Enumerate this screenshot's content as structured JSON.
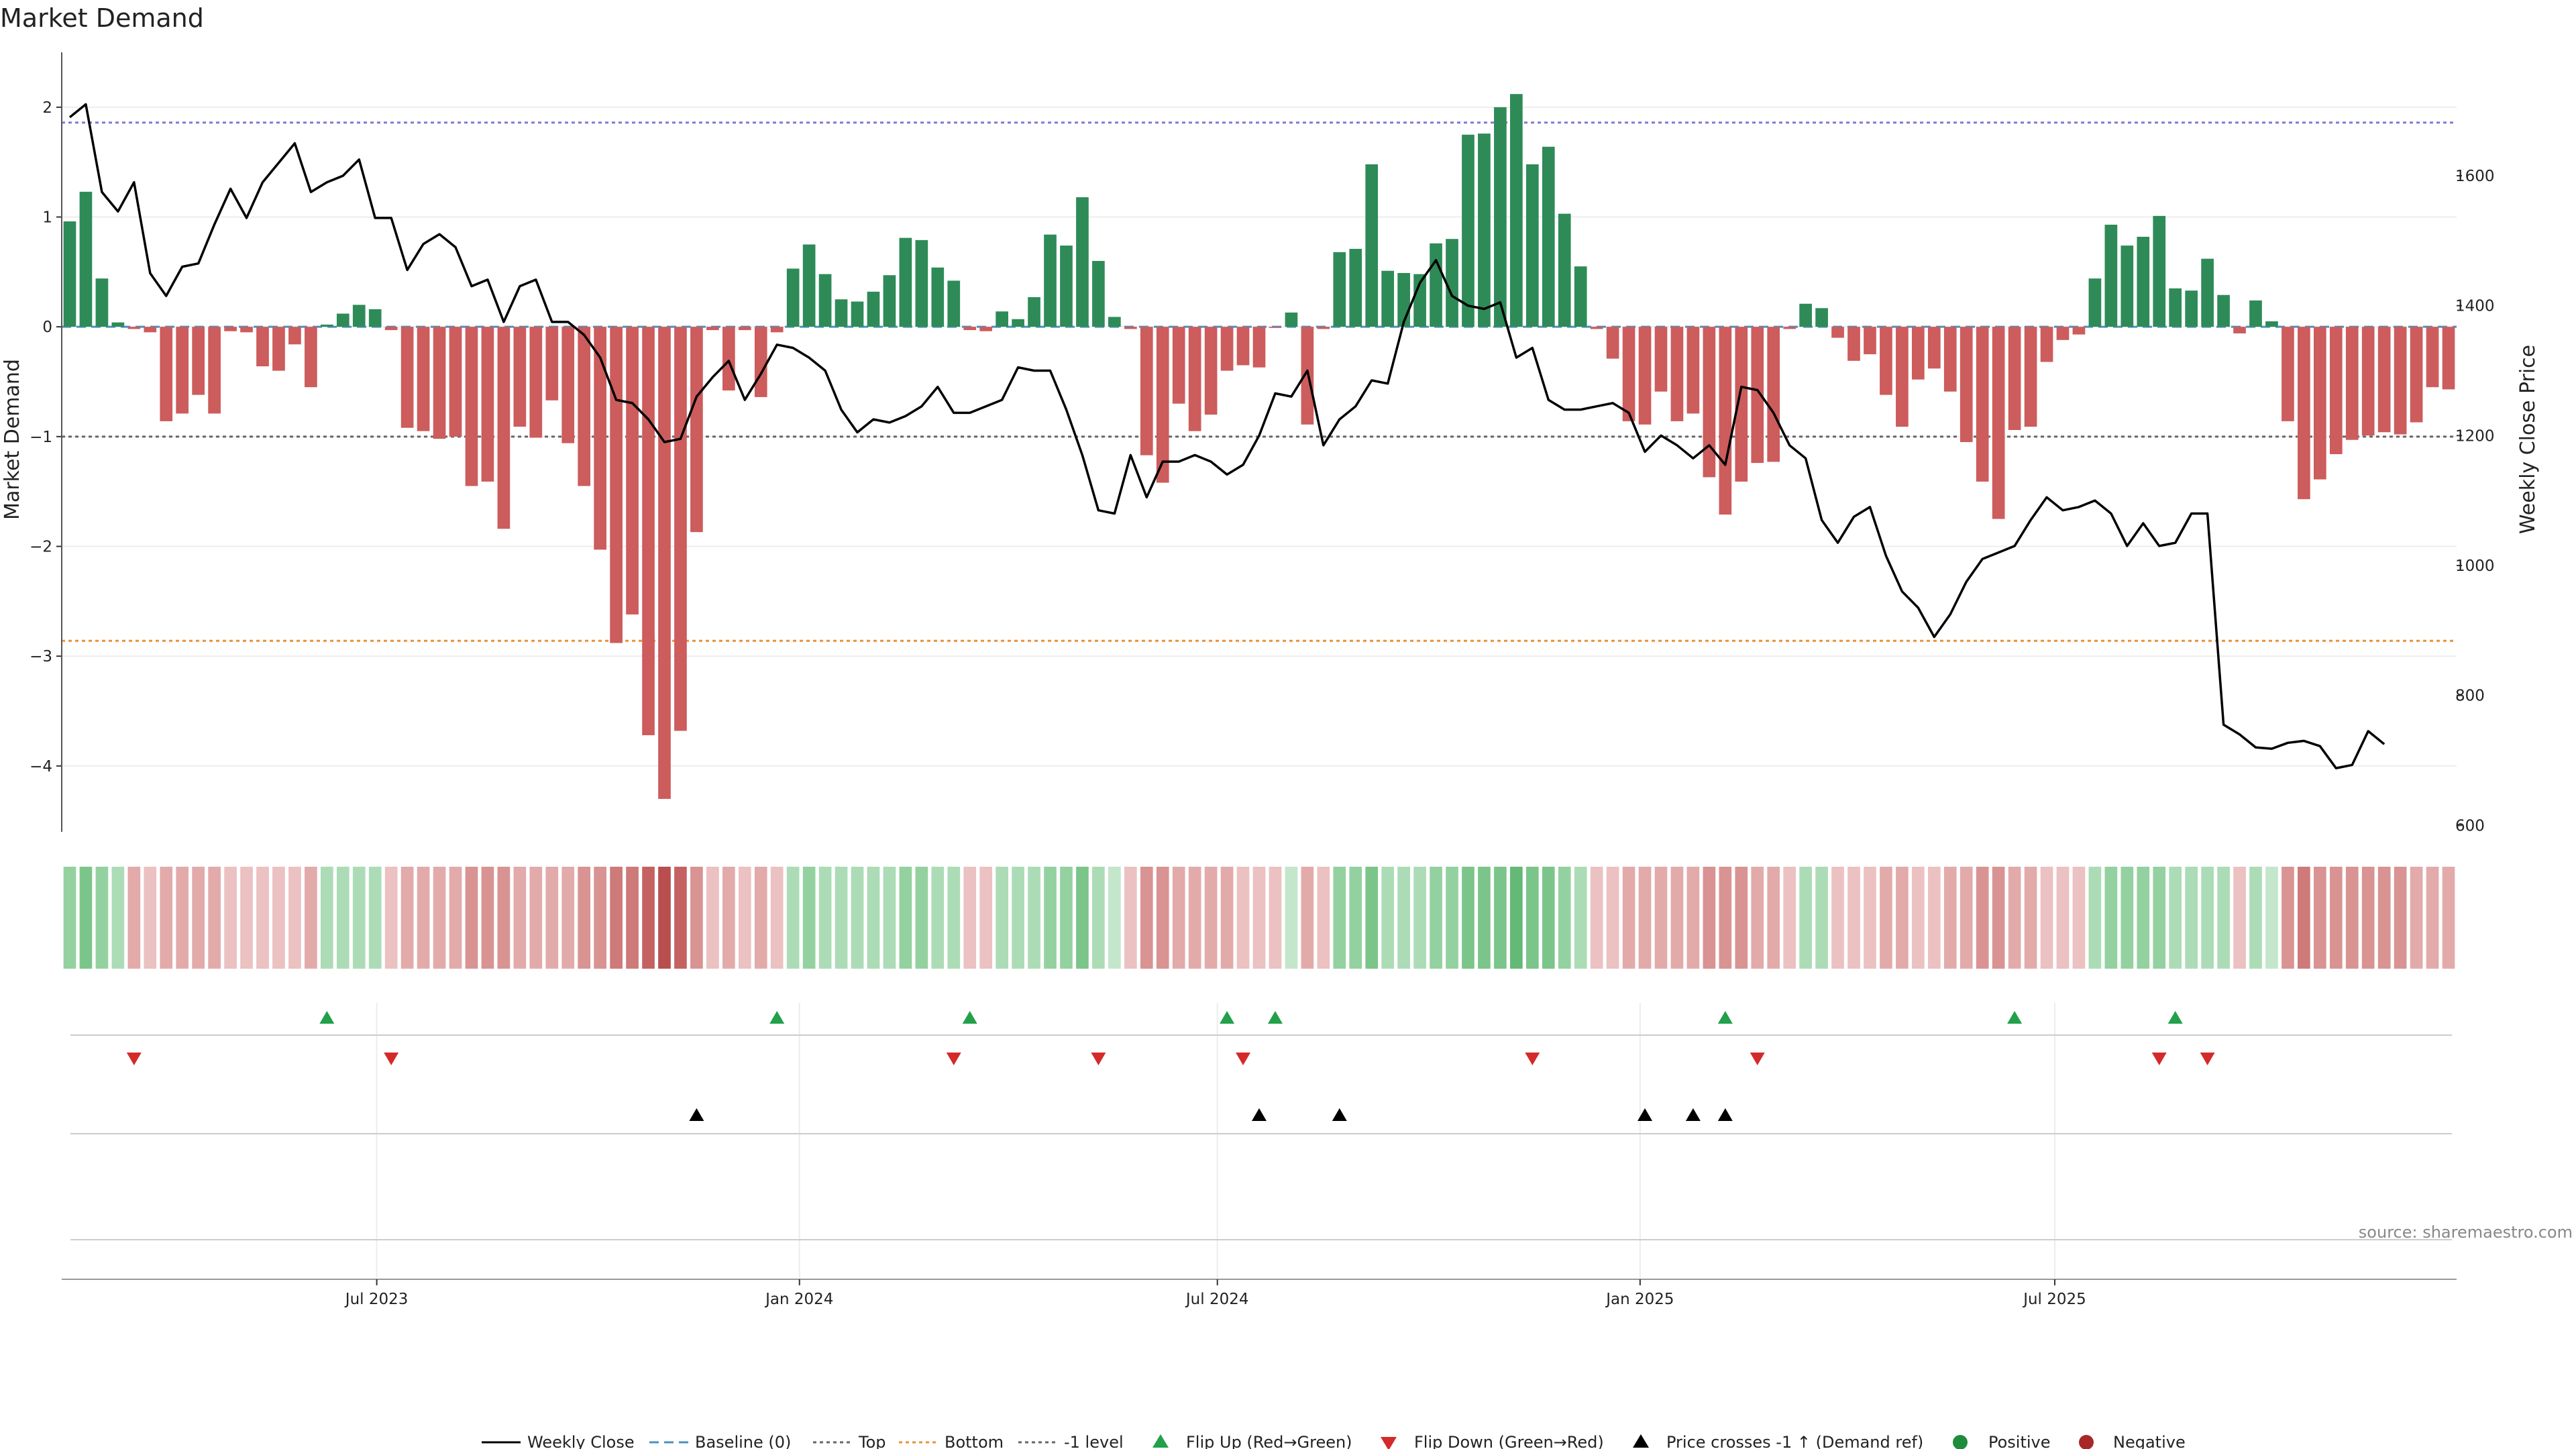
{
  "chart_data": {
    "type": "bar+line",
    "title": "Market Demand",
    "ylabel_left": "Market Demand",
    "ylabel_right": "Weekly Close Price",
    "ylim_left": [
      -4.6,
      2.5
    ],
    "ylim_right": [
      590,
      1790
    ],
    "yticks_left": [
      2,
      1,
      0,
      -1,
      -2,
      -3,
      -4
    ],
    "ytick_labels_left": [
      "2",
      "1",
      "0",
      "−1",
      "−2",
      "−3",
      "−4"
    ],
    "yticks_right": [
      1600,
      1400,
      1200,
      1000,
      800,
      600
    ],
    "ytick_labels_right": [
      "1600",
      "1400",
      "1200",
      "1000",
      "800",
      "600"
    ],
    "x_start": "2023-02-20",
    "x_step_weeks": 1,
    "xticks": [
      {
        "label": "Jul 2023",
        "week": 19.6
      },
      {
        "label": "Jan 2024",
        "week": 45.9
      },
      {
        "label": "Jul 2024",
        "week": 71.9
      },
      {
        "label": "Jan 2025",
        "week": 98.2
      },
      {
        "label": "Jul 2025",
        "week": 124.0
      }
    ],
    "reference_lines": {
      "top": 1.86,
      "bottom": -2.86,
      "minus_one_level": -1,
      "baseline": 0
    },
    "demand": [
      0.96,
      1.23,
      0.44,
      0.04,
      -0.02,
      -0.05,
      -0.86,
      -0.79,
      -0.62,
      -0.79,
      -0.04,
      -0.05,
      -0.36,
      -0.4,
      -0.16,
      -0.55,
      0.02,
      0.12,
      0.2,
      0.16,
      -0.03,
      -0.92,
      -0.95,
      -1.02,
      -1.0,
      -1.45,
      -1.41,
      -1.84,
      -0.91,
      -1.01,
      -0.67,
      -1.06,
      -1.45,
      -2.03,
      -2.88,
      -2.62,
      -3.72,
      -4.3,
      -3.68,
      -1.87,
      -0.03,
      -0.58,
      -0.03,
      -0.64,
      -0.05,
      0.53,
      0.75,
      0.48,
      0.25,
      0.23,
      0.32,
      0.47,
      0.81,
      0.79,
      0.54,
      0.42,
      -0.03,
      -0.04,
      0.14,
      0.07,
      0.27,
      0.84,
      0.74,
      1.18,
      0.6,
      0.09,
      -0.02,
      -1.17,
      -1.42,
      -0.7,
      -0.95,
      -0.8,
      -0.4,
      -0.35,
      -0.37,
      -0.01,
      0.13,
      -0.89,
      -0.02,
      0.68,
      0.71,
      1.48,
      0.51,
      0.49,
      0.48,
      0.76,
      0.8,
      1.75,
      1.76,
      2.0,
      2.12,
      1.48,
      1.64,
      1.03,
      0.55,
      -0.02,
      -0.29,
      -0.86,
      -0.89,
      -0.59,
      -0.86,
      -0.79,
      -1.37,
      -1.71,
      -1.41,
      -1.24,
      -1.23,
      -0.02,
      0.21,
      0.17,
      -0.1,
      -0.31,
      -0.25,
      -0.62,
      -0.91,
      -0.48,
      -0.38,
      -0.59,
      -1.05,
      -1.41,
      -1.75,
      -0.94,
      -0.91,
      -0.32,
      -0.12,
      -0.07,
      0.44,
      0.93,
      0.74,
      0.82,
      1.01,
      0.35,
      0.33,
      0.62,
      0.29,
      -0.06,
      0.24,
      0.05,
      -0.86,
      -1.57,
      -1.39,
      -1.16,
      -1.03,
      -0.99,
      -0.96,
      -0.98,
      -0.87,
      -0.55,
      -0.57
    ],
    "close": [
      1690,
      1710,
      1575,
      1545,
      1590,
      1450,
      1415,
      1460,
      1465,
      1525,
      1580,
      1535,
      1590,
      1620,
      1650,
      1575,
      1590,
      1600,
      1625,
      1535,
      1535,
      1455,
      1495,
      1510,
      1490,
      1430,
      1440,
      1375,
      1430,
      1440,
      1375,
      1375,
      1355,
      1320,
      1255,
      1250,
      1225,
      1190,
      1195,
      1260,
      1290,
      1315,
      1255,
      1295,
      1340,
      1335,
      1320,
      1300,
      1240,
      1205,
      1225,
      1220,
      1230,
      1245,
      1275,
      1235,
      1235,
      1245,
      1255,
      1305,
      1300,
      1300,
      1240,
      1170,
      1085,
      1080,
      1170,
      1105,
      1160,
      1160,
      1170,
      1160,
      1140,
      1155,
      1200,
      1265,
      1260,
      1300,
      1185,
      1225,
      1245,
      1285,
      1280,
      1375,
      1435,
      1470,
      1415,
      1400,
      1395,
      1405,
      1320,
      1335,
      1255,
      1240,
      1240,
      1245,
      1250,
      1235,
      1175,
      1200,
      1185,
      1165,
      1185,
      1155,
      1275,
      1270,
      1235,
      1185,
      1165,
      1070,
      1035,
      1075,
      1090,
      1015,
      960,
      935,
      890,
      925,
      975,
      1010,
      1020,
      1030,
      1070,
      1105,
      1085,
      1090,
      1100,
      1080,
      1030,
      1065,
      1030,
      1035,
      1080,
      1080,
      755,
      740,
      720,
      718,
      727,
      730,
      722,
      688,
      693,
      745,
      725
    ],
    "heat_intensity": [
      3,
      4,
      3,
      2,
      2,
      1,
      2,
      2,
      2,
      2,
      1,
      1,
      1,
      1,
      1,
      2,
      2,
      2,
      2,
      2,
      1,
      2,
      2,
      2,
      2,
      3,
      3,
      3,
      2,
      2,
      2,
      2,
      3,
      3,
      4,
      4,
      5,
      6,
      5,
      3,
      1,
      2,
      1,
      2,
      1,
      2,
      3,
      2,
      2,
      2,
      2,
      2,
      3,
      3,
      2,
      2,
      1,
      1,
      2,
      2,
      2,
      3,
      3,
      4,
      2,
      1,
      1,
      3,
      3,
      2,
      2,
      2,
      2,
      1,
      1,
      1,
      1,
      2,
      1,
      3,
      3,
      4,
      2,
      2,
      2,
      3,
      3,
      4,
      4,
      4,
      5,
      4,
      4,
      3,
      2,
      1,
      1,
      2,
      2,
      2,
      2,
      2,
      3,
      3,
      3,
      2,
      2,
      1,
      2,
      2,
      1,
      1,
      1,
      2,
      2,
      1,
      1,
      2,
      2,
      3,
      3,
      2,
      2,
      1,
      1,
      1,
      2,
      3,
      3,
      3,
      3,
      2,
      2,
      2,
      2,
      1,
      2,
      1,
      3,
      4,
      3,
      3,
      3,
      3,
      3,
      3,
      2,
      2,
      2
    ],
    "flip_up_weeks": [
      16,
      44,
      56,
      72,
      75,
      103,
      121,
      131
    ],
    "flip_down_weeks": [
      4,
      20,
      55,
      64,
      73,
      91,
      105,
      130,
      133
    ],
    "price_cross_weeks": [
      39,
      74,
      79,
      98,
      101,
      103
    ]
  },
  "legend": {
    "weekly_close": "Weekly Close",
    "baseline": "Baseline (0)",
    "top": "Top",
    "bottom": "Bottom",
    "minus_one_level": "-1 level",
    "flip_up": "Flip Up (Red→Green)",
    "flip_down": "Flip Down (Green→Red)",
    "price_cross": "Price crosses -1 ↑ (Demand ref)",
    "positive": "Positive",
    "negative": "Negative"
  },
  "source": "source: sharemaestro.com",
  "colors": {
    "positive": "#2e8b57",
    "negative": "#cd5c5c",
    "line": "#000000",
    "baseline": "#4a90c2",
    "top": "#7b7bd8",
    "bottom": "#e8913a",
    "minus_one": "#666666",
    "flip_up": "#22a04a",
    "flip_down": "#d42a2a",
    "legend_positive": "#1e8c3a",
    "legend_negative": "#a82828"
  }
}
